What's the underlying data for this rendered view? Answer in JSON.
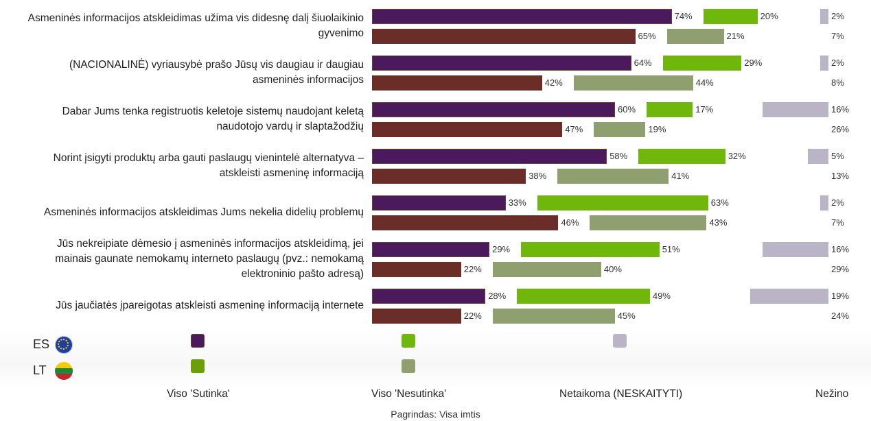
{
  "chart_data": {
    "type": "bar",
    "orientation": "horizontal",
    "layout": "diverging-paired",
    "categories": [
      "Asmeninės informacijos atskleidimas užima vis didesnę dalį šiuolaikinio gyvenimo",
      "(NACIONALINĖ) vyriausybė prašo Jūsų vis daugiau ir daugiau asmeninės informacijos",
      "Dabar Jums tenka registruotis keletoje sistemų naudojant keletą naudotojo vardų ir slaptažodžių",
      "Norint įsigyti produktų arba gauti paslaugų vienintelė alternatyva – atskleisti asmeninę informaciją",
      "Asmeninės informacijos atskleidimas Jums nekelia didelių problemų",
      "Jūs nekreipiate dėmesio į asmeninės informacijos atskleidimą, jei mainais gaunate nemokamų interneto paslaugų (pvz.: nemokamą elektroninio pašto adresą)",
      "Jūs jaučiatės įpareigotas atskleisti asmeninę informaciją internete"
    ],
    "groups": [
      "ES",
      "LT"
    ],
    "response_columns": [
      "Viso 'Sutinka'",
      "Viso 'Nesutinka'",
      "Netaikoma (NESKAITYTI)",
      "Nežino"
    ],
    "series": [
      {
        "group": "ES",
        "column": "Viso 'Sutinka'",
        "values": [
          74,
          64,
          60,
          58,
          33,
          29,
          28
        ],
        "color": "#4a1a5c"
      },
      {
        "group": "ES",
        "column": "Viso 'Nesutinka'",
        "values": [
          20,
          29,
          17,
          32,
          63,
          51,
          49
        ],
        "color": "#6fb70b"
      },
      {
        "group": "ES",
        "column": "Nežino",
        "values": [
          2,
          2,
          16,
          5,
          2,
          16,
          19
        ],
        "color": "#b9b5c6"
      },
      {
        "group": "LT",
        "column": "Viso 'Sutinka'",
        "values": [
          65,
          42,
          47,
          38,
          46,
          22,
          22
        ],
        "color": "#6b2d28"
      },
      {
        "group": "LT",
        "column": "Viso 'Nesutinka'",
        "values": [
          21,
          44,
          19,
          41,
          43,
          40,
          45
        ],
        "color": "#8f9f6f"
      },
      {
        "group": "LT",
        "column": "Nežino",
        "values": [
          7,
          8,
          26,
          13,
          7,
          29,
          24
        ],
        "color": "#ffffff"
      }
    ],
    "value_suffix": "%",
    "footnote": "Pagrindas: Visa imtis"
  },
  "labels": {
    "categories_display": [
      [
        "Asmeninės informacijos atskleidimas užima vis didesnę dalį šiuolaikinio",
        "gyvenimo"
      ],
      [
        "(NACIONALINĖ) vyriausybė prašo Jūsų vis daugiau ir daugiau",
        "asmeninės informacijos"
      ],
      [
        "Dabar Jums tenka registruotis keletoje sistemų naudojant keletą",
        "naudotojo vardų ir slaptažodžių"
      ],
      [
        "Norint įsigyti produktų arba gauti paslaugų vienintelė alternatyva –",
        "atskleisti asmeninę informaciją"
      ],
      [
        "Asmeninės informacijos atskleidimas Jums nekelia didelių problemų"
      ],
      [
        "Jūs nekreipiate dėmesio į asmeninės informacijos atskleidimą, jei",
        "mainais gaunate nemokamų interneto paslaugų (pvz.: nemokamą",
        "elektroninio pašto adresą)"
      ],
      [
        "Jūs jaučiatės įpareigotas atskleisti asmeninę informaciją internete"
      ]
    ]
  },
  "legend": {
    "es_label": "ES",
    "lt_label": "LT",
    "es_flag_icon": "eu-flag-icon",
    "lt_flag_icon": "lithuania-flag-icon",
    "col_agree": "Viso 'Sutinka'",
    "col_disagree": "Viso 'Nesutinka'",
    "col_na": "Netaikoma (NESKAITYTI)",
    "col_dk": "Nežino"
  },
  "footer": {
    "base": "Pagrindas: Visa imtis"
  }
}
